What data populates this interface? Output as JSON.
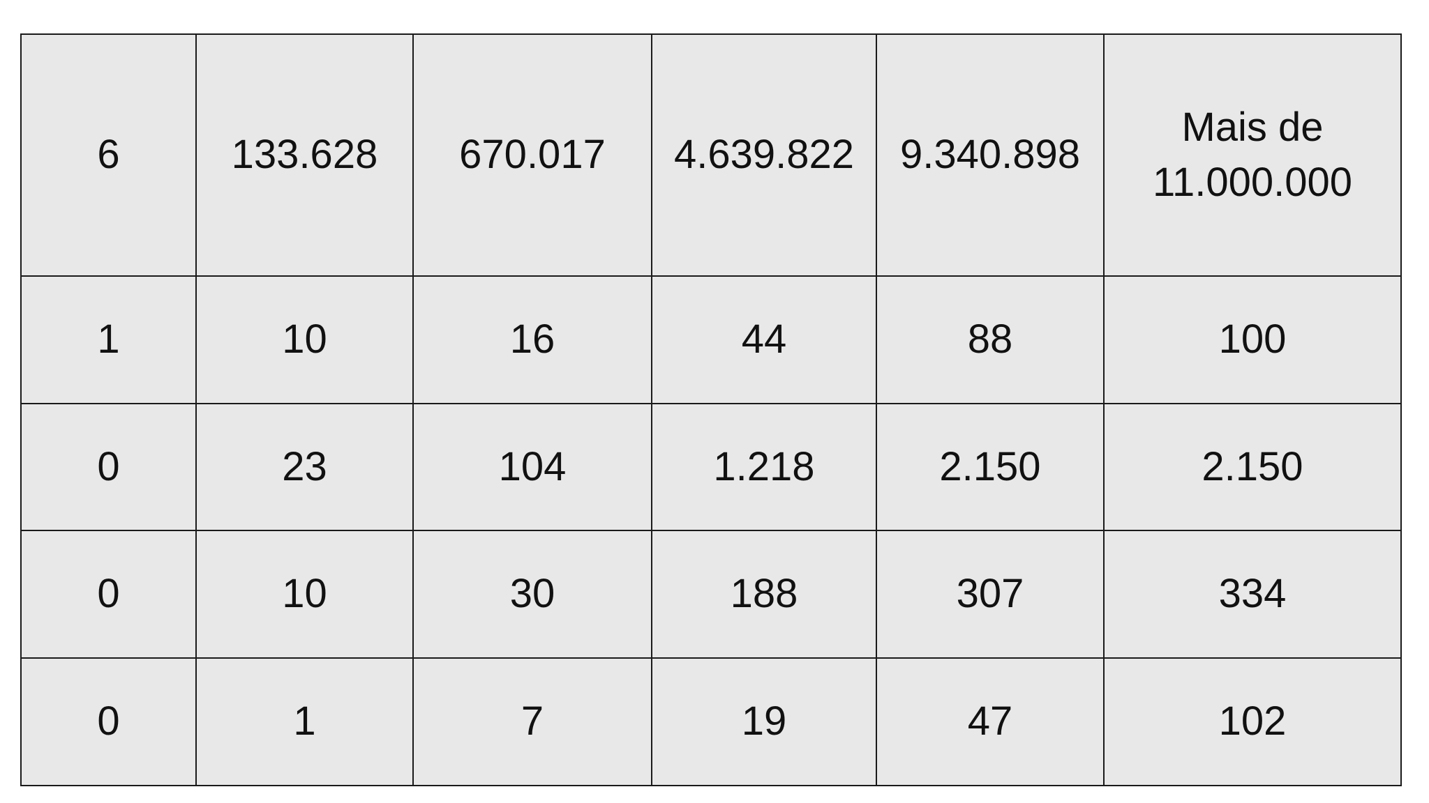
{
  "table": {
    "rows": [
      [
        "6",
        "133.628",
        "670.017",
        "4.639.822",
        "9.340.898",
        "Mais de 11.000.000"
      ],
      [
        "1",
        "10",
        "16",
        "44",
        "88",
        "100"
      ],
      [
        "0",
        "23",
        "104",
        "1.218",
        "2.150",
        "2.150"
      ],
      [
        "0",
        "10",
        "30",
        "188",
        "307",
        "334"
      ],
      [
        "0",
        "1",
        "7",
        "19",
        "47",
        "102"
      ]
    ]
  }
}
